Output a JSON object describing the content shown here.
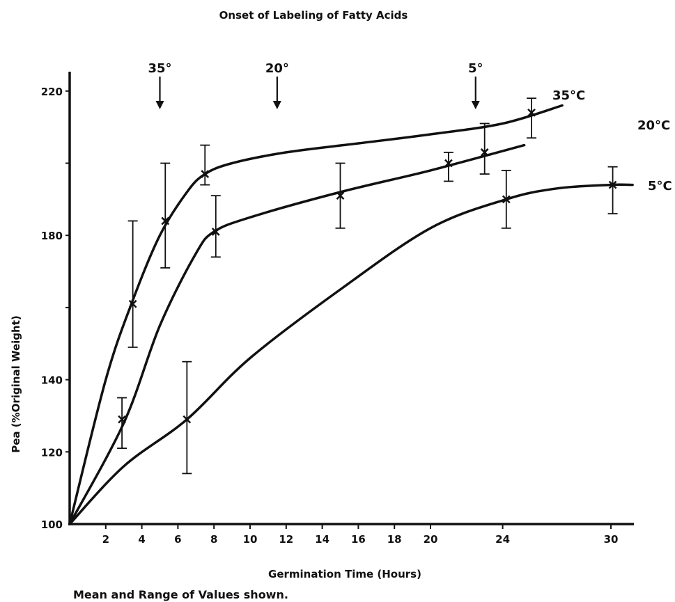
{
  "chart_data": {
    "type": "line",
    "title": "Onset of Labeling of Fatty Acids",
    "xlabel": "Germination Time (Hours)",
    "ylabel": "Pea (%Original Weight)",
    "footnote": "Mean and Range of Values shown.",
    "x_ticks": [
      2,
      4,
      6,
      8,
      10,
      12,
      14,
      16,
      18,
      20,
      24,
      30
    ],
    "y_ticks": [
      100,
      120,
      140,
      180,
      220
    ],
    "xlim": [
      0,
      32
    ],
    "ylim": [
      100,
      225
    ],
    "grid": false,
    "legend": "inline labels at line ends",
    "onset_markers": [
      {
        "label": "35°",
        "x": 5.0
      },
      {
        "label": "20°",
        "x": 11.5
      },
      {
        "label": "5°",
        "x": 22.5
      }
    ],
    "series": [
      {
        "name": "35°C",
        "curve": [
          [
            0,
            100
          ],
          [
            2,
            140
          ],
          [
            3.5,
            162
          ],
          [
            5,
            180
          ],
          [
            6.5,
            192
          ],
          [
            7.5,
            197
          ],
          [
            9,
            200
          ],
          [
            12,
            203
          ],
          [
            16,
            205.5
          ],
          [
            20,
            208
          ],
          [
            24,
            211
          ],
          [
            27.3,
            216
          ]
        ],
        "points": [
          {
            "x": 3.5,
            "y": 161,
            "low": 149,
            "high": 184
          },
          {
            "x": 5.3,
            "y": 184,
            "low": 171,
            "high": 200
          },
          {
            "x": 7.5,
            "y": 197,
            "low": 194,
            "high": 205
          },
          {
            "x": 25.6,
            "y": 214,
            "low": 207,
            "high": 218
          }
        ]
      },
      {
        "name": "20°C",
        "curve": [
          [
            0,
            100
          ],
          [
            3,
            128
          ],
          [
            5,
            155
          ],
          [
            7,
            175
          ],
          [
            8,
            181
          ],
          [
            10,
            185
          ],
          [
            15,
            192
          ],
          [
            20,
            198
          ],
          [
            25.2,
            205
          ]
        ],
        "points": [
          {
            "x": 2.9,
            "y": 129,
            "low": 121,
            "high": 135
          },
          {
            "x": 8.1,
            "y": 181,
            "low": 174,
            "high": 191
          },
          {
            "x": 15.0,
            "y": 191,
            "low": 182,
            "high": 200
          },
          {
            "x": 21.0,
            "y": 200,
            "low": 195,
            "high": 203
          },
          {
            "x": 23.0,
            "y": 203,
            "low": 197,
            "high": 211
          }
        ]
      },
      {
        "name": "5°C",
        "curve": [
          [
            0,
            100
          ],
          [
            3,
            116
          ],
          [
            6.5,
            129
          ],
          [
            10,
            146
          ],
          [
            15,
            165
          ],
          [
            20,
            182
          ],
          [
            24.2,
            190
          ],
          [
            27,
            193
          ],
          [
            30,
            194
          ],
          [
            31.2,
            194
          ]
        ],
        "points": [
          {
            "x": 6.5,
            "y": 129,
            "low": 114,
            "high": 145
          },
          {
            "x": 24.2,
            "y": 190,
            "low": 182,
            "high": 198
          },
          {
            "x": 30.1,
            "y": 194,
            "low": 186,
            "high": 199
          }
        ]
      }
    ],
    "series_label_text": [
      "35°C",
      "20°C",
      "5°C"
    ]
  }
}
